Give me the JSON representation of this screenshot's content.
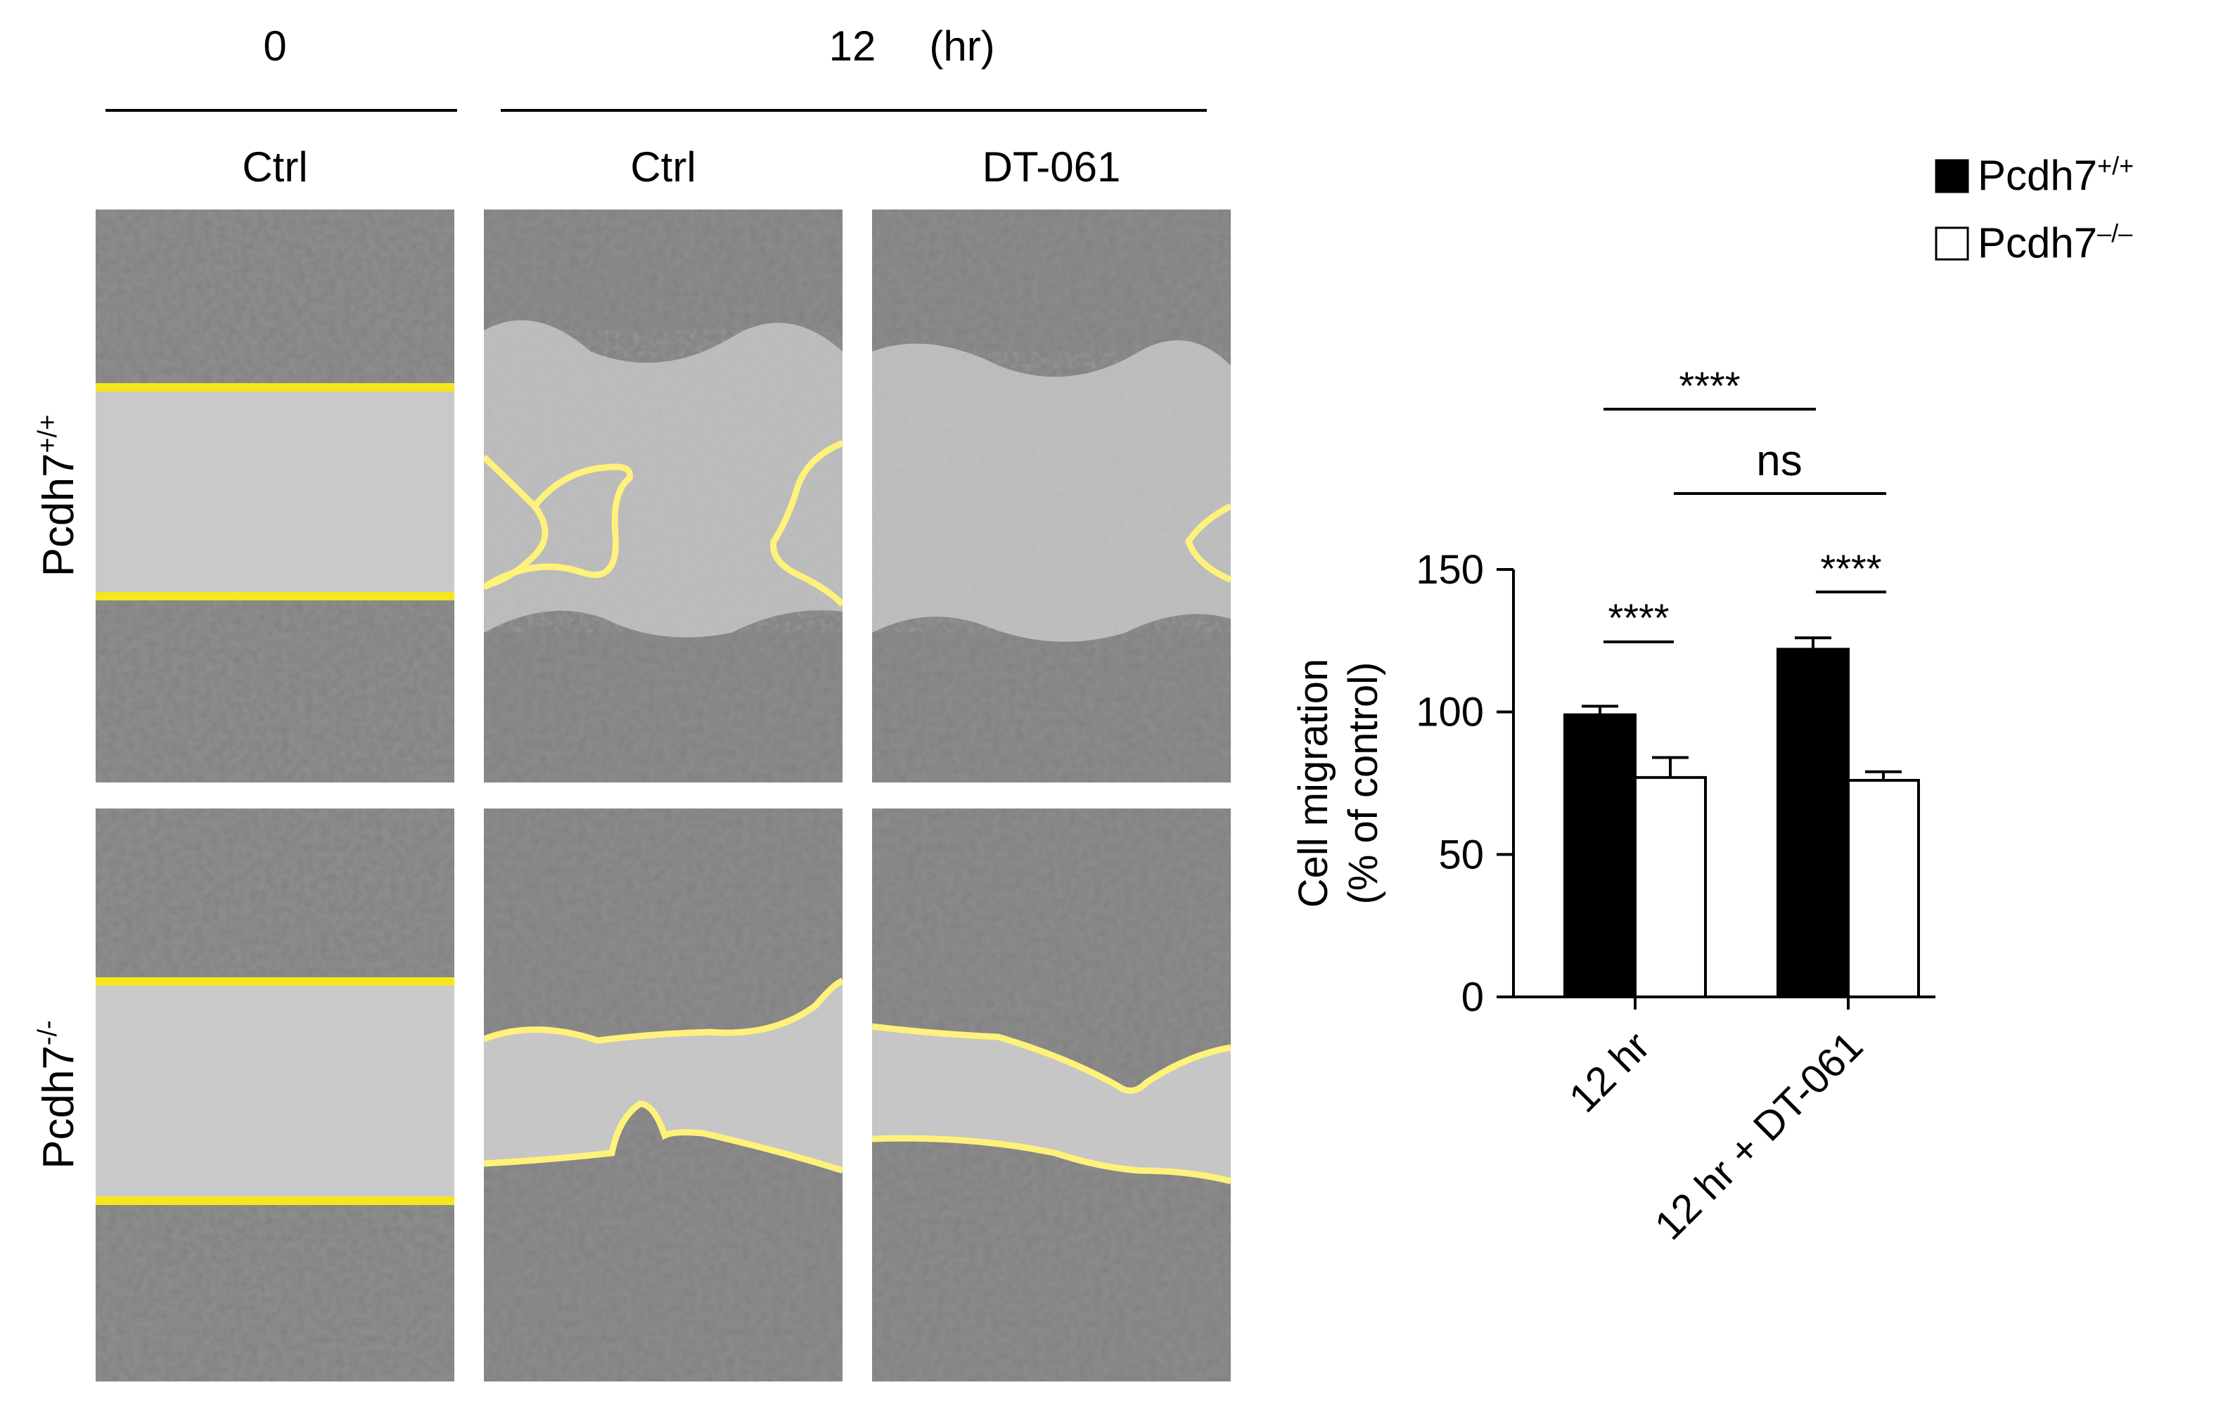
{
  "header": {
    "time_0": "0",
    "time_12": "12",
    "time_unit": "(hr)",
    "col_ctrl_0": "Ctrl",
    "col_ctrl_12": "Ctrl",
    "col_dt061": "DT-061"
  },
  "rows": {
    "wt": {
      "base": "Pcdh7",
      "sup": "+/+"
    },
    "ko": {
      "base": "Pcdh7",
      "sup": "-/-"
    }
  },
  "legend": {
    "placement": "top-right",
    "items": [
      {
        "base": "Pcdh7",
        "sup": "+/+",
        "fill": "#000000"
      },
      {
        "base": "Pcdh7",
        "sup": "–/–",
        "fill": "#ffffff"
      }
    ]
  },
  "colors": {
    "wound_line": "#f5e61e",
    "wound_line_soft": "#fff27a",
    "gap_fill": "#c9c9c9",
    "cells": "#555555"
  },
  "chart_data": {
    "type": "bar",
    "title": "",
    "xlabel": "",
    "ylabel_line1": "Cell migration",
    "ylabel_line2": "(% of control)",
    "ylim": [
      0,
      150
    ],
    "yticks": [
      0,
      50,
      100,
      150
    ],
    "grid": false,
    "categories": [
      "12 hr",
      "12 hr + DT-061"
    ],
    "series": [
      {
        "name": "Pcdh7+/+",
        "values": [
          99,
          122
        ],
        "errors": [
          3,
          4
        ],
        "fill": "#000000"
      },
      {
        "name": "Pcdh7–/–",
        "values": [
          77,
          76
        ],
        "errors": [
          7,
          3
        ],
        "fill": "#ffffff"
      }
    ],
    "significance": [
      {
        "label": "****"
      },
      {
        "label": "ns"
      },
      {
        "label": "****"
      },
      {
        "label": "****"
      }
    ]
  }
}
